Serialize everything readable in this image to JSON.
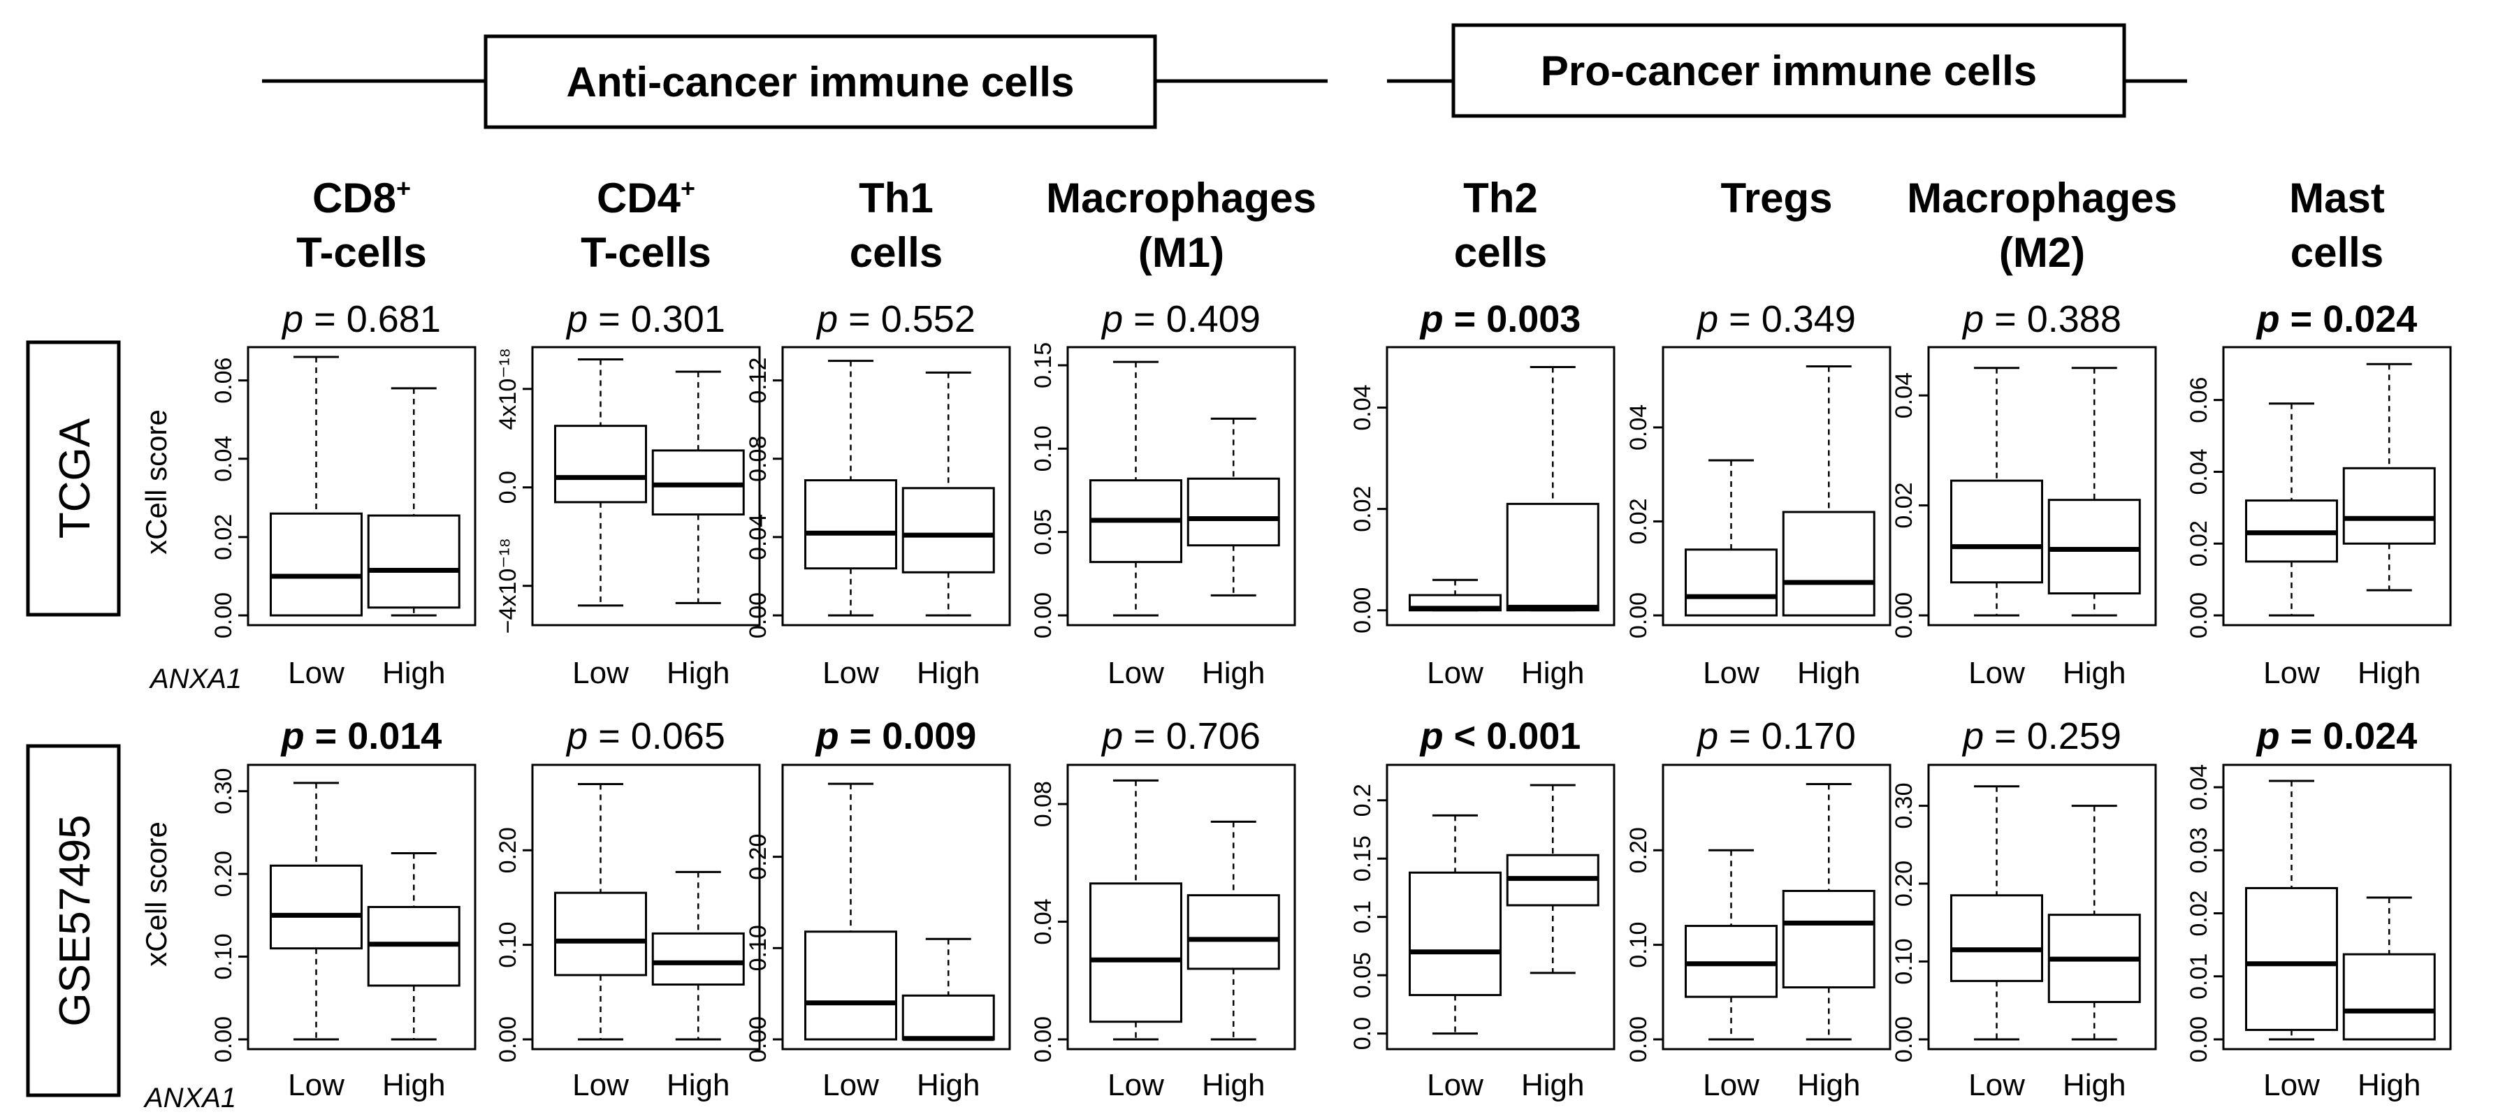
{
  "header": {
    "anti_label": "Anti-cancer immune cells",
    "pro_label": "Pro-cancer immune cells"
  },
  "columns": [
    {
      "line1": "CD8",
      "sup": "+",
      "line2": "T-cells"
    },
    {
      "line1": "CD4",
      "sup": "+",
      "line2": "T-cells"
    },
    {
      "line1": "Th1",
      "sup": "",
      "line2": "cells"
    },
    {
      "line1": "Macrophages",
      "sup": "",
      "line2": "(M1)"
    },
    {
      "line1": "Th2",
      "sup": "",
      "line2": "cells"
    },
    {
      "line1": "Tregs",
      "sup": "",
      "line2": ""
    },
    {
      "line1": "Macrophages",
      "sup": "",
      "line2": "(M2)"
    },
    {
      "line1": "Mast",
      "sup": "",
      "line2": "cells"
    }
  ],
  "rows": [
    {
      "label": "TCGA",
      "ylabel": "xCell score",
      "factor_label": "ANXA1"
    },
    {
      "label": "GSE57495",
      "ylabel": "xCell score",
      "factor_label": "ANXA1"
    }
  ],
  "chart_data": [
    {
      "type": "boxplot",
      "row": "TCGA",
      "cell_type": "CD8+ T-cells",
      "p_text": "= 0.681",
      "p_bold": false,
      "categories": [
        "Low",
        "High"
      ],
      "ylim": [
        0,
        0.066
      ],
      "ticks": [
        {
          "v": 0,
          "label": "0.00"
        },
        {
          "v": 0.02,
          "label": "0.02"
        },
        {
          "v": 0.04,
          "label": "0.04"
        },
        {
          "v": 0.06,
          "label": "0.06"
        }
      ],
      "boxes": [
        {
          "min": 0,
          "q1": 0,
          "median": 0.01,
          "q3": 0.026,
          "max": 0.066
        },
        {
          "min": 0,
          "q1": 0.002,
          "median": 0.0115,
          "q3": 0.0255,
          "max": 0.058
        }
      ]
    },
    {
      "type": "boxplot",
      "row": "TCGA",
      "cell_type": "CD4+ T-cells",
      "p_text": "= 0.301",
      "p_bold": false,
      "categories": [
        "Low",
        "High"
      ],
      "ylim": [
        -5.2,
        5.3
      ],
      "ticks": [
        {
          "v": -4,
          "label": "−4x10⁻¹⁸"
        },
        {
          "v": 0,
          "label": "0.0"
        },
        {
          "v": 4,
          "label": "4x10⁻¹⁸"
        }
      ],
      "boxes": [
        {
          "min": -4.8,
          "q1": -0.6,
          "median": 0.4,
          "q3": 2.5,
          "max": 5.2
        },
        {
          "min": -4.7,
          "q1": -1.1,
          "median": 0.1,
          "q3": 1.5,
          "max": 4.7
        }
      ]
    },
    {
      "type": "boxplot",
      "row": "TCGA",
      "cell_type": "Th1 cells",
      "p_text": "= 0.552",
      "p_bold": false,
      "categories": [
        "Low",
        "High"
      ],
      "ylim": [
        0,
        0.132
      ],
      "ticks": [
        {
          "v": 0,
          "label": "0.00"
        },
        {
          "v": 0.04,
          "label": "0.04"
        },
        {
          "v": 0.08,
          "label": "0.08"
        },
        {
          "v": 0.12,
          "label": "0.12"
        }
      ],
      "boxes": [
        {
          "min": 0,
          "q1": 0.024,
          "median": 0.042,
          "q3": 0.069,
          "max": 0.13
        },
        {
          "min": 0,
          "q1": 0.022,
          "median": 0.041,
          "q3": 0.065,
          "max": 0.124
        }
      ]
    },
    {
      "type": "boxplot",
      "row": "TCGA",
      "cell_type": "Macrophages (M1)",
      "p_text": "= 0.409",
      "p_bold": false,
      "categories": [
        "Low",
        "High"
      ],
      "ylim": [
        0,
        0.155
      ],
      "ticks": [
        {
          "v": 0,
          "label": "0.00"
        },
        {
          "v": 0.05,
          "label": "0.05"
        },
        {
          "v": 0.1,
          "label": "0.10"
        },
        {
          "v": 0.15,
          "label": "0.15"
        }
      ],
      "boxes": [
        {
          "min": 0,
          "q1": 0.032,
          "median": 0.057,
          "q3": 0.081,
          "max": 0.152
        },
        {
          "min": 0.012,
          "q1": 0.042,
          "median": 0.058,
          "q3": 0.082,
          "max": 0.118
        }
      ]
    },
    {
      "type": "boxplot",
      "row": "TCGA",
      "cell_type": "Th2 cells",
      "p_text": "= 0.003",
      "p_bold": true,
      "categories": [
        "Low",
        "High"
      ],
      "ylim": [
        -0.001,
        0.05
      ],
      "ticks": [
        {
          "v": 0,
          "label": "0.00"
        },
        {
          "v": 0.02,
          "label": "0.02"
        },
        {
          "v": 0.04,
          "label": "0.04"
        }
      ],
      "boxes": [
        {
          "min": 0,
          "q1": 0,
          "median": 0.0004,
          "q3": 0.003,
          "max": 0.006
        },
        {
          "min": 0,
          "q1": 0,
          "median": 0.0006,
          "q3": 0.021,
          "max": 0.048
        }
      ]
    },
    {
      "type": "boxplot",
      "row": "TCGA",
      "cell_type": "Tregs",
      "p_text": "= 0.349",
      "p_bold": false,
      "categories": [
        "Low",
        "High"
      ],
      "ylim": [
        0,
        0.055
      ],
      "ticks": [
        {
          "v": 0,
          "label": "0.00"
        },
        {
          "v": 0.02,
          "label": "0.02"
        },
        {
          "v": 0.04,
          "label": "0.04"
        }
      ],
      "boxes": [
        {
          "min": 0,
          "q1": 0,
          "median": 0.004,
          "q3": 0.014,
          "max": 0.033
        },
        {
          "min": 0,
          "q1": 0,
          "median": 0.007,
          "q3": 0.022,
          "max": 0.053
        }
      ]
    },
    {
      "type": "boxplot",
      "row": "TCGA",
      "cell_type": "Macrophages (M2)",
      "p_text": "= 0.388",
      "p_bold": false,
      "categories": [
        "Low",
        "High"
      ],
      "ylim": [
        0,
        0.047
      ],
      "ticks": [
        {
          "v": 0,
          "label": "0.00"
        },
        {
          "v": 0.02,
          "label": "0.02"
        },
        {
          "v": 0.04,
          "label": "0.04"
        }
      ],
      "boxes": [
        {
          "min": 0,
          "q1": 0.006,
          "median": 0.0125,
          "q3": 0.0245,
          "max": 0.045
        },
        {
          "min": 0,
          "q1": 0.004,
          "median": 0.012,
          "q3": 0.021,
          "max": 0.045
        }
      ]
    },
    {
      "type": "boxplot",
      "row": "TCGA",
      "cell_type": "Mast cells",
      "p_text": "= 0.024",
      "p_bold": true,
      "categories": [
        "Low",
        "High"
      ],
      "ylim": [
        0,
        0.072
      ],
      "ticks": [
        {
          "v": 0,
          "label": "0.00"
        },
        {
          "v": 0.02,
          "label": "0.02"
        },
        {
          "v": 0.04,
          "label": "0.04"
        },
        {
          "v": 0.06,
          "label": "0.06"
        }
      ],
      "boxes": [
        {
          "min": 0,
          "q1": 0.015,
          "median": 0.023,
          "q3": 0.032,
          "max": 0.059
        },
        {
          "min": 0.007,
          "q1": 0.02,
          "median": 0.027,
          "q3": 0.041,
          "max": 0.07
        }
      ]
    },
    {
      "type": "boxplot",
      "row": "GSE57495",
      "cell_type": "CD8+ T-cells",
      "p_text": "= 0.014",
      "p_bold": true,
      "categories": [
        "Low",
        "High"
      ],
      "ylim": [
        0,
        0.32
      ],
      "ticks": [
        {
          "v": 0,
          "label": "0.00"
        },
        {
          "v": 0.1,
          "label": "0.10"
        },
        {
          "v": 0.2,
          "label": "0.20"
        },
        {
          "v": 0.3,
          "label": "0.30"
        }
      ],
      "boxes": [
        {
          "min": 0,
          "q1": 0.11,
          "median": 0.15,
          "q3": 0.21,
          "max": 0.31
        },
        {
          "min": 0,
          "q1": 0.065,
          "median": 0.115,
          "q3": 0.16,
          "max": 0.225
        }
      ]
    },
    {
      "type": "boxplot",
      "row": "GSE57495",
      "cell_type": "CD4+ T-cells",
      "p_text": "= 0.065",
      "p_bold": false,
      "categories": [
        "Low",
        "High"
      ],
      "ylim": [
        0,
        0.28
      ],
      "ticks": [
        {
          "v": 0,
          "label": "0.00"
        },
        {
          "v": 0.1,
          "label": "0.10"
        },
        {
          "v": 0.2,
          "label": "0.20"
        }
      ],
      "boxes": [
        {
          "min": 0,
          "q1": 0.068,
          "median": 0.104,
          "q3": 0.155,
          "max": 0.27
        },
        {
          "min": 0,
          "q1": 0.058,
          "median": 0.081,
          "q3": 0.112,
          "max": 0.177
        }
      ]
    },
    {
      "type": "boxplot",
      "row": "GSE57495",
      "cell_type": "Th1 cells",
      "p_text": "= 0.009",
      "p_bold": true,
      "categories": [
        "Low",
        "High"
      ],
      "ylim": [
        0,
        0.29
      ],
      "ticks": [
        {
          "v": 0,
          "label": "0.00"
        },
        {
          "v": 0.1,
          "label": "0.10"
        },
        {
          "v": 0.2,
          "label": "0.20"
        }
      ],
      "boxes": [
        {
          "min": 0,
          "q1": 0,
          "median": 0.04,
          "q3": 0.118,
          "max": 0.28
        },
        {
          "min": 0,
          "q1": 0,
          "median": 0.001,
          "q3": 0.048,
          "max": 0.11
        }
      ]
    },
    {
      "type": "boxplot",
      "row": "GSE57495",
      "cell_type": "Macrophages (M1)",
      "p_text": "= 0.706",
      "p_bold": false,
      "categories": [
        "Low",
        "High"
      ],
      "ylim": [
        0,
        0.09
      ],
      "ticks": [
        {
          "v": 0,
          "label": "0.00"
        },
        {
          "v": 0.04,
          "label": "0.04"
        },
        {
          "v": 0.08,
          "label": "0.08"
        }
      ],
      "boxes": [
        {
          "min": 0,
          "q1": 0.006,
          "median": 0.027,
          "q3": 0.053,
          "max": 0.088
        },
        {
          "min": 0,
          "q1": 0.024,
          "median": 0.034,
          "q3": 0.049,
          "max": 0.074
        }
      ]
    },
    {
      "type": "boxplot",
      "row": "GSE57495",
      "cell_type": "Th2 cells",
      "p_text": "< 0.001",
      "p_bold": true,
      "categories": [
        "Low",
        "High"
      ],
      "ylim": [
        -0.005,
        0.222
      ],
      "ticks": [
        {
          "v": 0,
          "label": "0.0"
        },
        {
          "v": 0.05,
          "label": "0.05"
        },
        {
          "v": 0.1,
          "label": "0.1"
        },
        {
          "v": 0.15,
          "label": "0.15"
        },
        {
          "v": 0.2,
          "label": "0.2"
        }
      ],
      "boxes": [
        {
          "min": 0,
          "q1": 0.033,
          "median": 0.07,
          "q3": 0.138,
          "max": 0.187
        },
        {
          "min": 0.052,
          "q1": 0.11,
          "median": 0.133,
          "q3": 0.153,
          "max": 0.213
        }
      ]
    },
    {
      "type": "boxplot",
      "row": "GSE57495",
      "cell_type": "Tregs",
      "p_text": "= 0.170",
      "p_bold": false,
      "categories": [
        "Low",
        "High"
      ],
      "ylim": [
        0,
        0.28
      ],
      "ticks": [
        {
          "v": 0,
          "label": "0.00"
        },
        {
          "v": 0.1,
          "label": "0.10"
        },
        {
          "v": 0.2,
          "label": "0.20"
        }
      ],
      "boxes": [
        {
          "min": 0,
          "q1": 0.045,
          "median": 0.08,
          "q3": 0.12,
          "max": 0.2
        },
        {
          "min": 0,
          "q1": 0.055,
          "median": 0.123,
          "q3": 0.157,
          "max": 0.27
        }
      ]
    },
    {
      "type": "boxplot",
      "row": "GSE57495",
      "cell_type": "Macrophages (M2)",
      "p_text": "= 0.259",
      "p_bold": false,
      "categories": [
        "Low",
        "High"
      ],
      "ylim": [
        0,
        0.34
      ],
      "ticks": [
        {
          "v": 0,
          "label": "0.00"
        },
        {
          "v": 0.1,
          "label": "0.10"
        },
        {
          "v": 0.2,
          "label": "0.20"
        },
        {
          "v": 0.3,
          "label": "0.30"
        }
      ],
      "boxes": [
        {
          "min": 0,
          "q1": 0.075,
          "median": 0.115,
          "q3": 0.185,
          "max": 0.325
        },
        {
          "min": 0,
          "q1": 0.048,
          "median": 0.103,
          "q3": 0.16,
          "max": 0.3
        }
      ]
    },
    {
      "type": "boxplot",
      "row": "GSE57495",
      "cell_type": "Mast cells",
      "p_text": "= 0.024",
      "p_bold": true,
      "categories": [
        "Low",
        "High"
      ],
      "ylim": [
        0,
        0.042
      ],
      "ticks": [
        {
          "v": 0,
          "label": "0.00"
        },
        {
          "v": 0.01,
          "label": "0.01"
        },
        {
          "v": 0.02,
          "label": "0.02"
        },
        {
          "v": 0.03,
          "label": "0.03"
        },
        {
          "v": 0.04,
          "label": "0.04"
        }
      ],
      "boxes": [
        {
          "min": 0,
          "q1": 0.0015,
          "median": 0.012,
          "q3": 0.024,
          "max": 0.041
        },
        {
          "min": 0,
          "q1": 0,
          "median": 0.0045,
          "q3": 0.0135,
          "max": 0.0225
        }
      ]
    }
  ]
}
